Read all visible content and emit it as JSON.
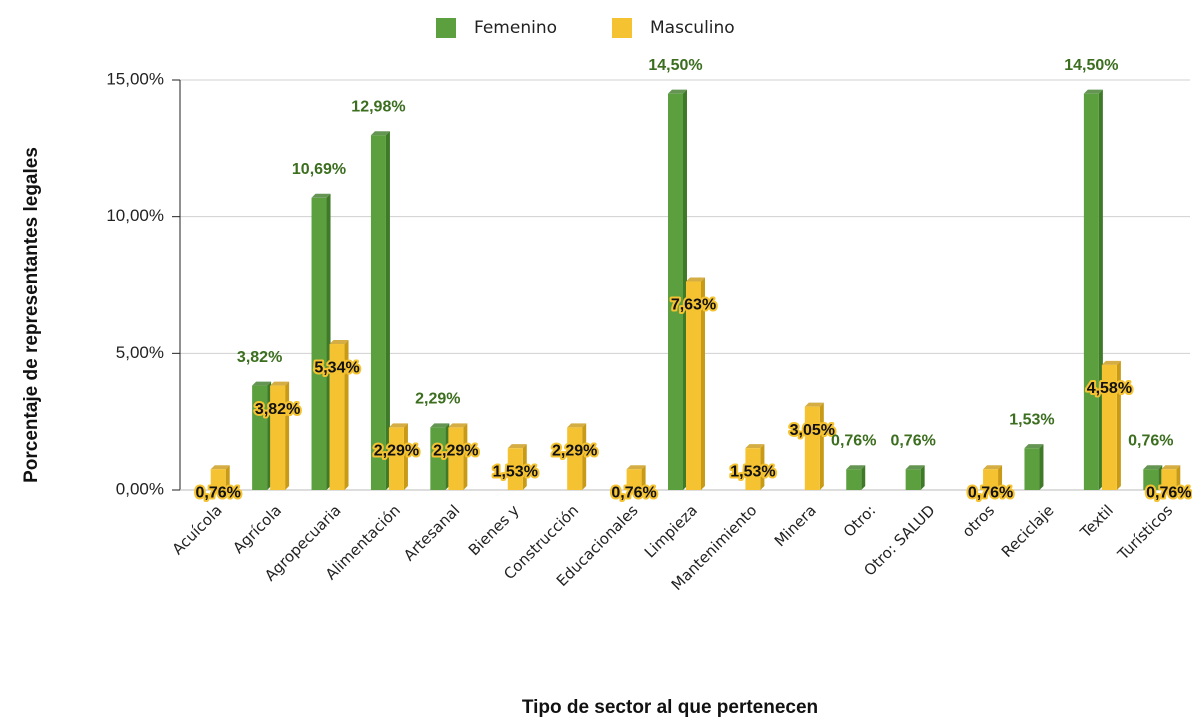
{
  "chart_data": {
    "type": "bar",
    "x_label": "Tipo de sector al que pertenecen",
    "y_label": "Porcentaje de representantes legales",
    "categories": [
      "Acuícola",
      "Agrícola",
      "Agropecuaria",
      "Alimentación",
      "Artesanal",
      "Bienes y",
      "Construcción",
      "Educacionales",
      "Limpieza",
      "Mantenimiento",
      "Minera",
      "Otro:",
      "Otro: SALUD",
      "otros",
      "Reciclaje",
      "Textil",
      "Turísticos"
    ],
    "series": [
      {
        "name": "Femenino",
        "color": "#5b9f3f",
        "values": [
          null,
          3.82,
          10.69,
          12.98,
          2.29,
          null,
          null,
          null,
          14.5,
          null,
          null,
          0.76,
          0.76,
          null,
          1.53,
          14.5,
          0.76
        ],
        "value_labels": [
          null,
          "3,82%",
          "10,69%",
          "12,98%",
          "2,29%",
          null,
          null,
          null,
          "14,50%",
          null,
          null,
          "0,76%",
          "0,76%",
          null,
          "1,53%",
          "14,50%",
          "0,76%"
        ]
      },
      {
        "name": "Masculino",
        "color": "#f5c331",
        "values": [
          0.76,
          3.82,
          5.34,
          2.29,
          2.29,
          1.53,
          2.29,
          0.76,
          7.63,
          1.53,
          3.05,
          null,
          null,
          0.76,
          null,
          4.58,
          0.76
        ],
        "value_labels": [
          "0,76%",
          "3,82%",
          "5,34%",
          "2,29%",
          "2,29%",
          "1,53%",
          "2,29%",
          "0,76%",
          "7,63%",
          "1,53%",
          "3,05%",
          null,
          null,
          "0,76%",
          null,
          "4,58%",
          "0,76%"
        ]
      }
    ],
    "ylim": [
      0,
      15
    ],
    "yticks": [
      {
        "value": 0,
        "label": "0,00%"
      },
      {
        "value": 5,
        "label": "5,00%"
      },
      {
        "value": 10,
        "label": "10,00%"
      },
      {
        "value": 15,
        "label": "15,00%"
      }
    ],
    "grid": true,
    "legend": "top"
  }
}
